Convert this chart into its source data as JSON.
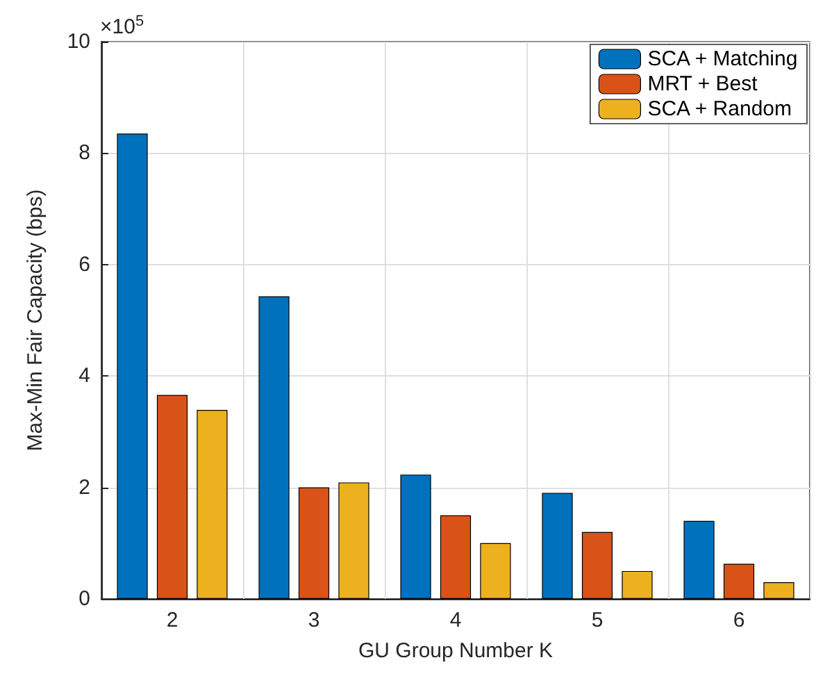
{
  "chart_data": {
    "type": "bar",
    "xlabel": "GU Group Number K",
    "ylabel": "Max-Min Fair Capacity (bps)",
    "annotations": [
      "×10$^{5}$"
    ],
    "categories": [
      "2",
      "3",
      "4",
      "5",
      "6"
    ],
    "series": [
      {
        "name": "SCA + Matching",
        "color": "#0072bd",
        "values": [
          8.35,
          5.43,
          2.23,
          1.9,
          1.4
        ]
      },
      {
        "name": "MRT + Best",
        "color": "#d95319",
        "values": [
          3.66,
          2.0,
          1.5,
          1.2,
          0.63
        ]
      },
      {
        "name": "SCA + Random",
        "color": "#edb120",
        "values": [
          3.39,
          2.09,
          1.0,
          0.5,
          0.3
        ]
      }
    ],
    "ylim": [
      0,
      10
    ],
    "yticks": [
      0,
      2,
      4,
      6,
      8,
      10
    ],
    "grid": true,
    "legend": "top right"
  }
}
